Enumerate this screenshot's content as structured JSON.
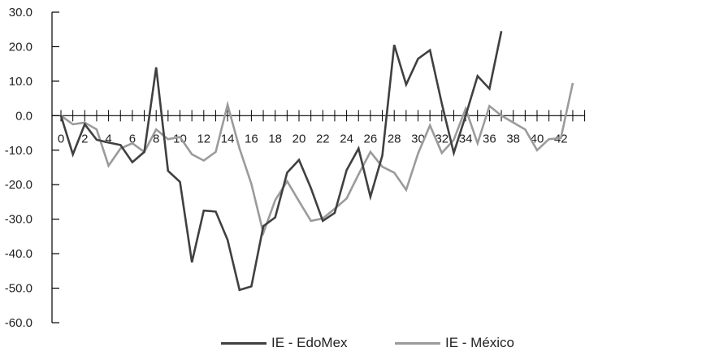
{
  "chart_data": {
    "type": "line",
    "title": "",
    "xlabel": "",
    "ylabel": "",
    "ylim": [
      -60,
      30
    ],
    "y_ticks": [
      30,
      20,
      10,
      0,
      -10,
      -20,
      -30,
      -40,
      -50,
      -60
    ],
    "y_tick_labels": [
      "30.0",
      "20.0",
      "10.0",
      "0.0",
      "-10.0",
      "-20.0",
      "-30.0",
      "-40.0",
      "-50.0",
      "-60.0"
    ],
    "xlim": [
      0,
      44
    ],
    "x_tick_labels": [
      "0",
      "2",
      "4",
      "6",
      "8",
      "10",
      "12",
      "14",
      "16",
      "18",
      "20",
      "22",
      "24",
      "26",
      "28",
      "30",
      "32",
      "34",
      "36",
      "38",
      "40",
      "42"
    ],
    "grid": false,
    "legend": "bottom",
    "series": [
      {
        "name": "IE - EdoMex",
        "color": "#404040",
        "x": [
          0,
          1,
          2,
          3,
          4,
          5,
          6,
          7,
          8,
          9,
          10,
          11,
          12,
          13,
          14,
          15,
          16,
          17,
          18,
          19,
          20,
          21,
          22,
          23,
          24,
          25,
          26,
          27,
          28,
          29,
          30,
          31,
          32,
          33,
          34,
          35,
          36,
          37
        ],
        "values": [
          0.0,
          -11.2,
          -2.5,
          -7.0,
          -7.8,
          -8.5,
          -13.5,
          -10.5,
          14.0,
          -16.0,
          -19.2,
          -42.5,
          -27.5,
          -27.8,
          -36.0,
          -50.5,
          -49.5,
          -32.0,
          -29.5,
          -16.5,
          -12.8,
          -21.0,
          -30.5,
          -28.2,
          -15.8,
          -9.5,
          -23.5,
          -11.5,
          20.5,
          9.0,
          16.5,
          19.0,
          3.5,
          -10.8,
          0.0,
          11.5,
          7.8,
          24.5
        ]
      },
      {
        "name": "IE - México",
        "color": "#9b9b9b",
        "x": [
          0,
          1,
          2,
          3,
          4,
          5,
          6,
          7,
          8,
          9,
          10,
          11,
          12,
          13,
          14,
          15,
          16,
          17,
          18,
          19,
          20,
          21,
          22,
          23,
          24,
          25,
          26,
          27,
          28,
          29,
          30,
          31,
          32,
          33,
          34,
          35,
          36,
          37,
          38,
          39,
          40,
          41,
          42,
          43
        ],
        "values": [
          0.0,
          -2.5,
          -2.0,
          -4.0,
          -14.5,
          -9.5,
          -8.0,
          -10.5,
          -4.0,
          -6.8,
          -6.2,
          -11.2,
          -13.0,
          -10.5,
          3.2,
          -9.5,
          -19.8,
          -34.0,
          -24.5,
          -19.0,
          -24.8,
          -30.5,
          -29.8,
          -27.0,
          -24.0,
          -17.0,
          -10.5,
          -14.8,
          -16.5,
          -21.5,
          -11.0,
          -2.8,
          -10.8,
          -7.0,
          2.0,
          -8.0,
          2.8,
          0.0,
          -2.0,
          -4.0,
          -10.0,
          -6.8,
          -6.5,
          9.5
        ]
      }
    ]
  }
}
